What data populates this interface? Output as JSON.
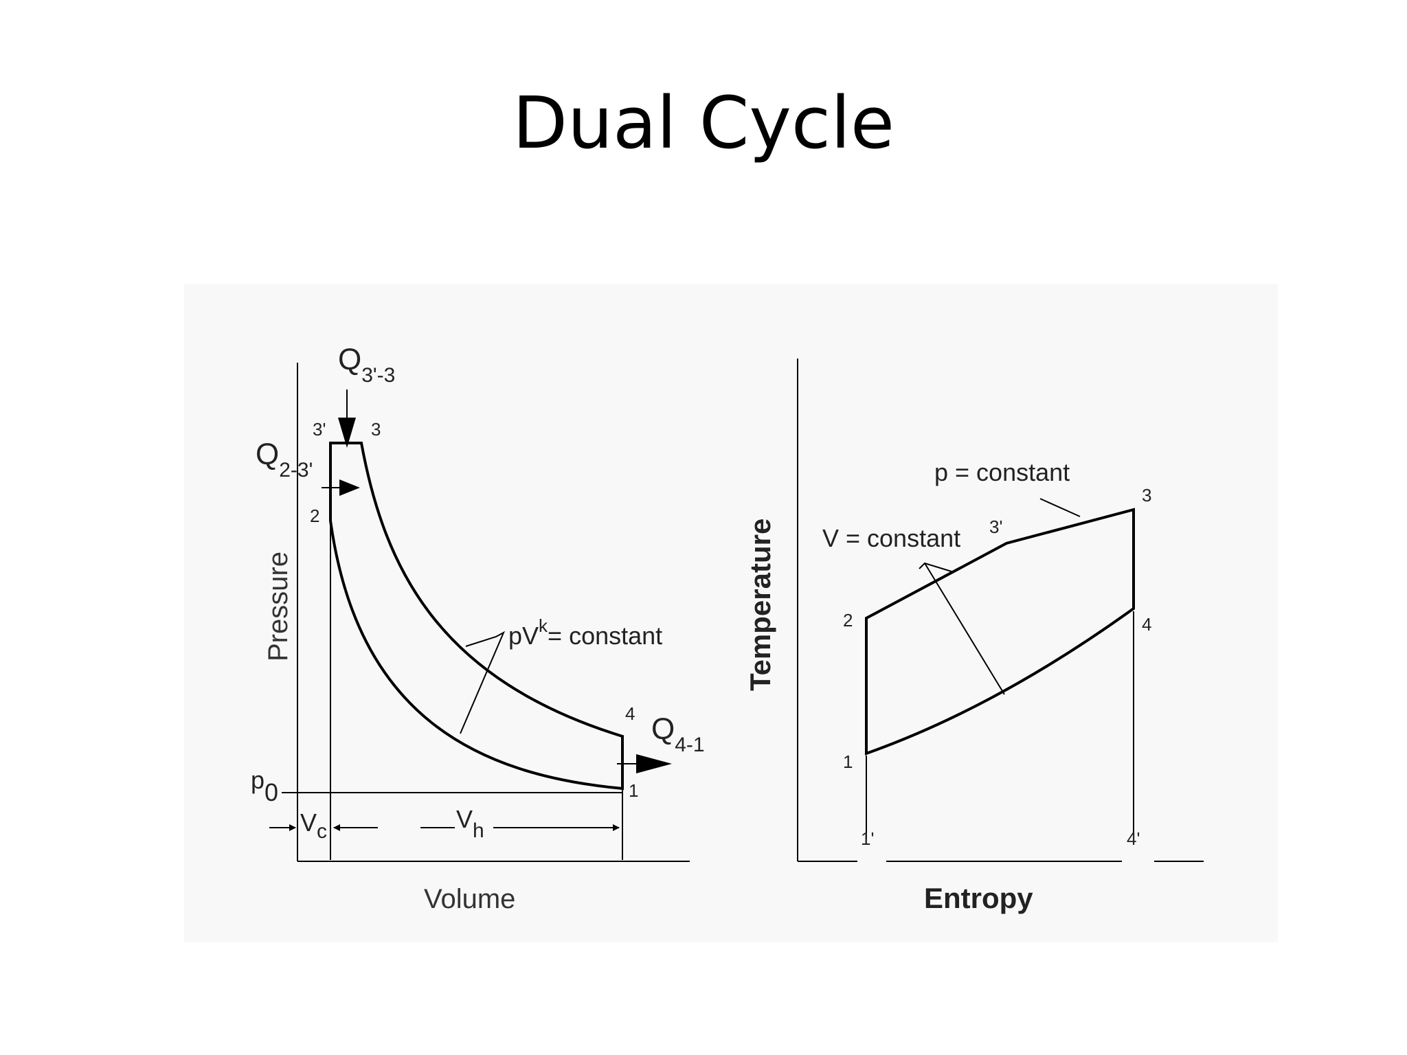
{
  "title": "Dual Cycle",
  "pv_diagram": {
    "axis_y": "Pressure",
    "axis_x": "Volume",
    "heat_in_v": {
      "symbol": "Q",
      "subscript": "3'-3"
    },
    "heat_in_p": {
      "symbol": "Q",
      "subscript": "2-3'"
    },
    "heat_out": {
      "symbol": "Q",
      "subscript": "4-1"
    },
    "points": {
      "p1": "1",
      "p2": "2",
      "p3prime": "3'",
      "p3": "3",
      "p4": "4"
    },
    "ambient_pressure": {
      "symbol": "p",
      "subscript": "0"
    },
    "clearance_volume": {
      "symbol": "V",
      "subscript": "c"
    },
    "swept_volume": {
      "symbol": "V",
      "subscript": "h"
    },
    "adiabat": {
      "prefix": "pV",
      "exponent": "k",
      "suffix": "= constant"
    }
  },
  "ts_diagram": {
    "axis_y": "Temperature",
    "axis_x": "Entropy",
    "isobar_label": "p = constant",
    "isochore_label": "V = constant",
    "points": {
      "p1": "1",
      "p1prime": "1'",
      "p2": "2",
      "p3prime": "3'",
      "p3": "3",
      "p4": "4",
      "p4prime": "4'"
    }
  }
}
